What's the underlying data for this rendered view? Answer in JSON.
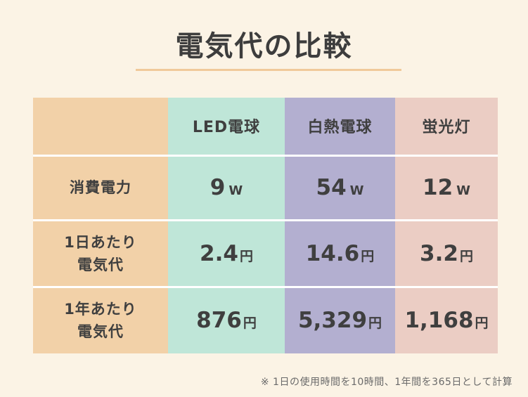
{
  "title": "電気代の比較",
  "table": {
    "columns": [
      "LED電球",
      "白熱電球",
      "蛍光灯"
    ],
    "rows": [
      {
        "label_line1": "消費電力",
        "label_line2": "",
        "cells": [
          {
            "value": "9",
            "unit": "W"
          },
          {
            "value": "54",
            "unit": "W"
          },
          {
            "value": "12",
            "unit": "W"
          }
        ]
      },
      {
        "label_line1": "1日あたり",
        "label_line2": "電気代",
        "cells": [
          {
            "value": "2.4",
            "unit": "円"
          },
          {
            "value": "14.6",
            "unit": "円"
          },
          {
            "value": "3.2",
            "unit": "円"
          }
        ]
      },
      {
        "label_line1": "1年あたり",
        "label_line2": "電気代",
        "cells": [
          {
            "value": "876",
            "unit": "円"
          },
          {
            "value": "5,329",
            "unit": "円"
          },
          {
            "value": "1,168",
            "unit": "円"
          }
        ]
      }
    ]
  },
  "footnote": "※ 1日の使用時間を10時間、1年間を365日として計算",
  "colors": {
    "background": "#fbf3e5",
    "label_column": "#f2d1a8",
    "led": "#bfe6d8",
    "incandescent": "#b3afd0",
    "fluorescent": "#ebcdc4",
    "accent_underline": "#f0c99a"
  },
  "chart_data": {
    "type": "table",
    "title": "電気代の比較",
    "columns": [
      "LED電球",
      "白熱電球",
      "蛍光灯"
    ],
    "rows": [
      {
        "label": "消費電力",
        "values": [
          9,
          54,
          12
        ],
        "unit": "W"
      },
      {
        "label": "1日あたり電気代",
        "values": [
          2.4,
          14.6,
          3.2
        ],
        "unit": "円"
      },
      {
        "label": "1年あたり電気代",
        "values": [
          876,
          5329,
          1168
        ],
        "unit": "円"
      }
    ],
    "note": "※ 1日の使用時間を10時間、1年間を365日として計算"
  }
}
